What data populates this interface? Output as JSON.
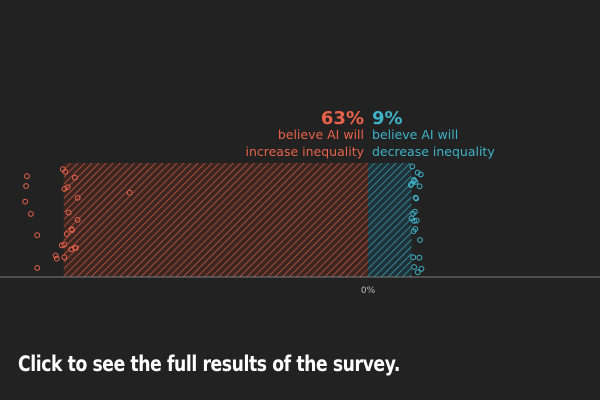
{
  "colors": {
    "background": "#222222",
    "increase": "#e8624a",
    "decrease": "#3fb3c8",
    "axis": "#7a7a7a"
  },
  "chart_data": {
    "type": "bar",
    "orientation": "horizontal-diverging",
    "categories": [
      "increase inequality",
      "decrease inequality"
    ],
    "series": [
      {
        "name": "believe AI will increase inequality",
        "value": 63,
        "label_value": "63%",
        "label_line1": "believe AI will",
        "label_line2": "increase inequality",
        "color": "#e8624a",
        "direction": "left"
      },
      {
        "name": "believe AI will decrease inequality",
        "value": 9,
        "label_value": "9%",
        "label_line1": "believe AI will",
        "label_line2": "decrease inequality",
        "color": "#3fb3c8",
        "direction": "right"
      }
    ],
    "x_tick_label": "0%",
    "xlim": [
      -70,
      10
    ],
    "grid": false,
    "legend": "none",
    "fill_pattern": "diagonal-hatch",
    "respondent_markers": "hollow-circles"
  },
  "cta": {
    "text": "Click to see the full results of the survey."
  }
}
